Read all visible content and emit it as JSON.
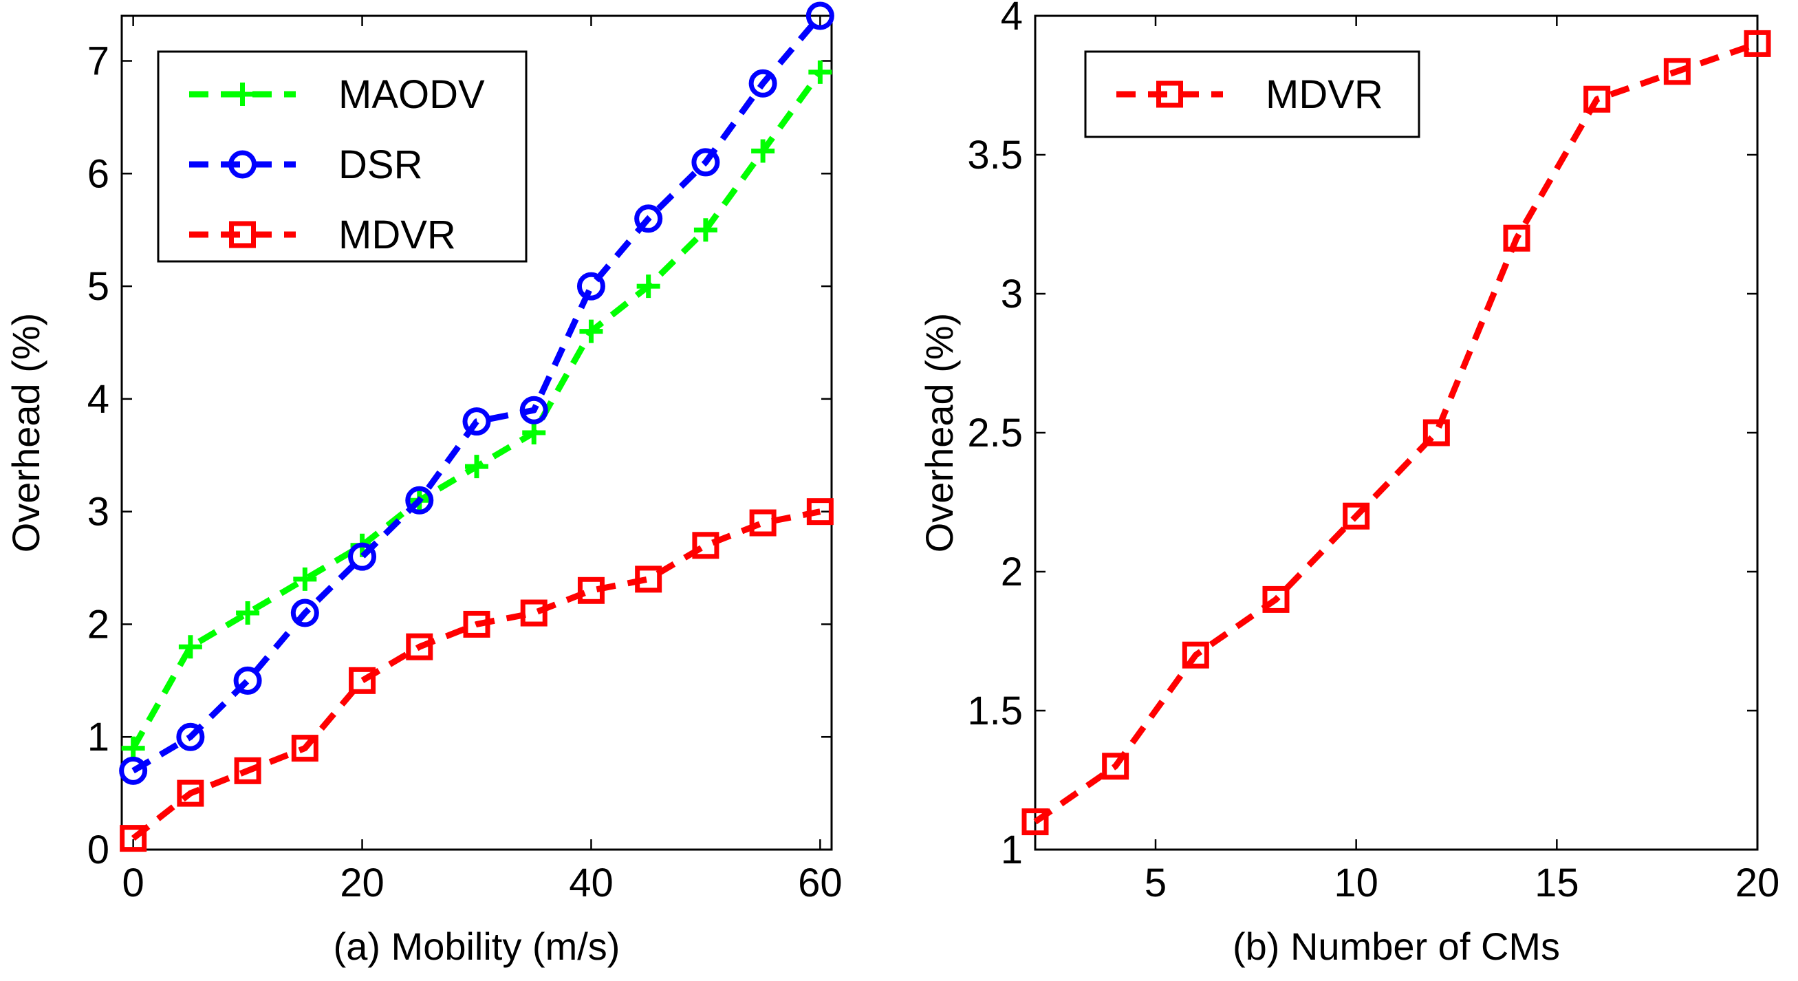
{
  "chart_data": [
    {
      "id": "a",
      "type": "line",
      "xlabel": "(a) Mobility (m/s)",
      "ylabel": "Overhead (%)",
      "xlim": [
        -1,
        61
      ],
      "ylim": [
        0,
        7.4
      ],
      "xticks": [
        0,
        20,
        40,
        60
      ],
      "xtick_labels": [
        "0",
        "20",
        "40",
        "60"
      ],
      "yticks": [
        0,
        1,
        2,
        3,
        4,
        5,
        6,
        7
      ],
      "ytick_labels": [
        "0",
        "1",
        "2",
        "3",
        "4",
        "5",
        "6",
        "7"
      ],
      "legend_position": "top-left",
      "x": [
        0,
        5,
        10,
        15,
        20,
        25,
        30,
        35,
        40,
        45,
        50,
        55,
        60
      ],
      "series": [
        {
          "name": "MAODV",
          "color": "#00ff00",
          "marker": "plus",
          "values": [
            0.9,
            1.8,
            2.1,
            2.4,
            2.7,
            3.1,
            3.4,
            3.7,
            4.6,
            5.0,
            5.5,
            6.2,
            6.9
          ]
        },
        {
          "name": "DSR",
          "color": "#0000ff",
          "marker": "circle",
          "values": [
            0.7,
            1.0,
            1.5,
            2.1,
            2.6,
            3.1,
            3.8,
            3.9,
            5.0,
            5.6,
            6.1,
            6.8,
            7.4
          ]
        },
        {
          "name": "MDVR",
          "color": "#ff0000",
          "marker": "square",
          "values": [
            0.1,
            0.5,
            0.7,
            0.9,
            1.5,
            1.8,
            2.0,
            2.1,
            2.3,
            2.4,
            2.7,
            2.9,
            3.0
          ]
        }
      ]
    },
    {
      "id": "b",
      "type": "line",
      "xlabel": "(b) Number of CMs",
      "ylabel": "Overhead (%)",
      "xlim": [
        2,
        20
      ],
      "ylim": [
        1,
        4
      ],
      "xticks": [
        5,
        10,
        15,
        20
      ],
      "xtick_labels": [
        "5",
        "10",
        "15",
        "20"
      ],
      "yticks": [
        1,
        1.5,
        2,
        2.5,
        3,
        3.5,
        4
      ],
      "ytick_labels": [
        "1",
        "1.5",
        "2",
        "2.5",
        "3",
        "3.5",
        "4"
      ],
      "legend_position": "top-left",
      "x": [
        2,
        4,
        6,
        8,
        10,
        12,
        14,
        16,
        18,
        20
      ],
      "series": [
        {
          "name": "MDVR",
          "color": "#ff0000",
          "marker": "square",
          "values": [
            1.1,
            1.3,
            1.7,
            1.9,
            2.2,
            2.5,
            3.2,
            3.7,
            3.8,
            3.9
          ]
        }
      ]
    }
  ]
}
